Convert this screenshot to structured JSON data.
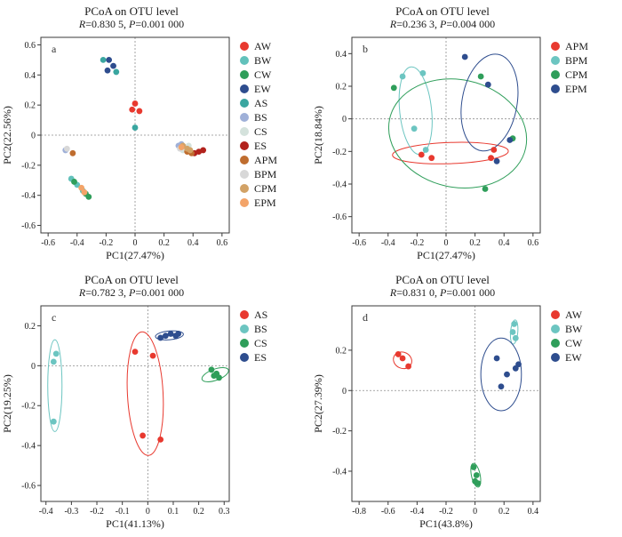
{
  "figure": {
    "background": "#ffffff"
  },
  "chart_data": [
    {
      "id": "a",
      "letter": "a",
      "type": "scatter",
      "title": "PCoA on OTU level",
      "stats": {
        "r_label": "R",
        "r_rest": "=0.830 5, ",
        "p_label": "P",
        "p_rest": "=0.001 000"
      },
      "xlabel": "PC1(27.47%)",
      "ylabel": "PC2(22.56%)",
      "xlim": [
        -0.65,
        0.65
      ],
      "ylim": [
        -0.65,
        0.65
      ],
      "xticks": [
        -0.6,
        -0.4,
        -0.2,
        0,
        0.2,
        0.4,
        0.6
      ],
      "yticks": [
        -0.6,
        -0.4,
        -0.2,
        0,
        0.2,
        0.4,
        0.6
      ],
      "series": [
        {
          "name": "AW",
          "color": "#e8392f",
          "points": [
            [
              0.0,
              0.21
            ],
            [
              -0.02,
              0.17
            ],
            [
              0.03,
              0.16
            ]
          ]
        },
        {
          "name": "BW",
          "color": "#62c1bb",
          "points": [
            [
              -0.44,
              -0.29
            ],
            [
              -0.4,
              -0.33
            ],
            [
              -0.36,
              -0.37
            ]
          ]
        },
        {
          "name": "CW",
          "color": "#2f9e5a",
          "points": [
            [
              -0.42,
              -0.31
            ],
            [
              -0.34,
              -0.39
            ],
            [
              -0.32,
              -0.41
            ]
          ]
        },
        {
          "name": "EW",
          "color": "#2e4d8e",
          "points": [
            [
              -0.18,
              0.5
            ],
            [
              -0.15,
              0.46
            ],
            [
              -0.19,
              0.43
            ]
          ]
        },
        {
          "name": "AS",
          "color": "#3aa6a0",
          "points": [
            [
              -0.22,
              0.5
            ],
            [
              -0.13,
              0.42
            ],
            [
              0.0,
              0.05
            ]
          ]
        },
        {
          "name": "BS",
          "color": "#9fb0d8",
          "points": [
            [
              0.3,
              -0.07
            ],
            [
              0.32,
              -0.06
            ],
            [
              -0.48,
              -0.1
            ]
          ]
        },
        {
          "name": "CS",
          "color": "#d4e2dc",
          "points": [
            [
              0.35,
              -0.09
            ],
            [
              0.37,
              -0.07
            ],
            [
              0.33,
              -0.1
            ]
          ]
        },
        {
          "name": "ES",
          "color": "#b2221c",
          "points": [
            [
              0.47,
              -0.1
            ],
            [
              0.44,
              -0.11
            ],
            [
              0.41,
              -0.12
            ]
          ]
        },
        {
          "name": "APM",
          "color": "#bf6d2f",
          "points": [
            [
              0.39,
              -0.12
            ],
            [
              0.36,
              -0.11
            ],
            [
              -0.43,
              -0.12
            ]
          ]
        },
        {
          "name": "BPM",
          "color": "#d8d8d8",
          "points": [
            [
              -0.47,
              -0.09
            ],
            [
              0.34,
              -0.08
            ],
            [
              0.31,
              -0.09
            ]
          ]
        },
        {
          "name": "CPM",
          "color": "#d2a266",
          "points": [
            [
              0.33,
              -0.07
            ],
            [
              0.36,
              -0.09
            ],
            [
              0.38,
              -0.1
            ]
          ]
        },
        {
          "name": "EPM",
          "color": "#f3a469",
          "points": [
            [
              -0.37,
              -0.35
            ],
            [
              -0.35,
              -0.38
            ],
            [
              0.32,
              -0.08
            ]
          ]
        }
      ],
      "ellipses": []
    },
    {
      "id": "b",
      "letter": "b",
      "type": "scatter",
      "title": "PCoA on OTU level",
      "stats": {
        "r_label": "R",
        "r_rest": "=0.236 3, ",
        "p_label": "P",
        "p_rest": "=0.004 000"
      },
      "xlabel": "PC1(27.47%)",
      "ylabel": "PC2(18.84%)",
      "xlim": [
        -0.65,
        0.65
      ],
      "ylim": [
        -0.7,
        0.5
      ],
      "xticks": [
        -0.6,
        -0.4,
        -0.2,
        0,
        0.2,
        0.4,
        0.6
      ],
      "yticks": [
        -0.6,
        -0.4,
        -0.2,
        0,
        0.2,
        0.4
      ],
      "series": [
        {
          "name": "APM",
          "color": "#e8392f",
          "points": [
            [
              -0.17,
              -0.22
            ],
            [
              -0.1,
              -0.24
            ],
            [
              0.33,
              -0.19
            ],
            [
              0.31,
              -0.24
            ]
          ]
        },
        {
          "name": "BPM",
          "color": "#6cc5c1",
          "points": [
            [
              -0.3,
              0.26
            ],
            [
              -0.16,
              0.28
            ],
            [
              -0.22,
              -0.06
            ],
            [
              -0.14,
              -0.19
            ]
          ]
        },
        {
          "name": "CPM",
          "color": "#2f9e5a",
          "points": [
            [
              -0.36,
              0.19
            ],
            [
              0.24,
              0.26
            ],
            [
              0.46,
              -0.12
            ],
            [
              0.27,
              -0.43
            ]
          ]
        },
        {
          "name": "EPM",
          "color": "#2e4d8e",
          "points": [
            [
              0.13,
              0.38
            ],
            [
              0.29,
              0.21
            ],
            [
              0.44,
              -0.13
            ],
            [
              0.35,
              -0.26
            ]
          ]
        }
      ],
      "ellipses": [
        {
          "color": "#e8392f",
          "cx": 0.03,
          "cy": -0.21,
          "rx": 0.4,
          "ry": 0.065,
          "rot": -2
        },
        {
          "color": "#6cc5c1",
          "cx": -0.21,
          "cy": 0.05,
          "rx": 0.11,
          "ry": 0.27,
          "rot": -6
        },
        {
          "color": "#2f9e5a",
          "cx": 0.08,
          "cy": -0.09,
          "rx": 0.48,
          "ry": 0.33,
          "rot": 12
        },
        {
          "color": "#2e4d8e",
          "cx": 0.3,
          "cy": 0.1,
          "rx": 0.19,
          "ry": 0.3,
          "rot": 10
        }
      ]
    },
    {
      "id": "c",
      "letter": "c",
      "type": "scatter",
      "title": "PCoA on OTU level",
      "stats": {
        "r_label": "R",
        "r_rest": "=0.782 3, ",
        "p_label": "P",
        "p_rest": "=0.001 000"
      },
      "xlabel": "PC1(41.13%)",
      "ylabel": "PC2(19.25%)",
      "xlim": [
        -0.42,
        0.32
      ],
      "ylim": [
        -0.68,
        0.3
      ],
      "xticks": [
        -0.4,
        -0.3,
        -0.2,
        -0.1,
        0,
        0.1,
        0.2,
        0.3
      ],
      "yticks": [
        -0.6,
        -0.4,
        -0.2,
        0,
        0.2
      ],
      "series": [
        {
          "name": "AS",
          "color": "#e8392f",
          "points": [
            [
              -0.05,
              0.07
            ],
            [
              0.02,
              0.05
            ],
            [
              -0.02,
              -0.35
            ],
            [
              0.05,
              -0.37
            ]
          ]
        },
        {
          "name": "BS",
          "color": "#6cc5c1",
          "points": [
            [
              -0.36,
              0.06
            ],
            [
              -0.37,
              0.02
            ],
            [
              -0.37,
              -0.28
            ]
          ]
        },
        {
          "name": "CS",
          "color": "#2f9e5a",
          "points": [
            [
              0.25,
              -0.02
            ],
            [
              0.27,
              -0.04
            ],
            [
              0.28,
              -0.06
            ],
            [
              0.26,
              -0.05
            ]
          ]
        },
        {
          "name": "ES",
          "color": "#2e4d8e",
          "points": [
            [
              0.05,
              0.14
            ],
            [
              0.07,
              0.15
            ],
            [
              0.09,
              0.16
            ],
            [
              0.11,
              0.15
            ],
            [
              0.12,
              0.16
            ]
          ]
        }
      ],
      "ellipses": [
        {
          "color": "#e8392f",
          "cx": -0.01,
          "cy": -0.14,
          "rx": 0.07,
          "ry": 0.31,
          "rot": -3
        },
        {
          "color": "#6cc5c1",
          "cx": -0.365,
          "cy": -0.1,
          "rx": 0.028,
          "ry": 0.23,
          "rot": 0
        },
        {
          "color": "#2f9e5a",
          "cx": 0.265,
          "cy": -0.045,
          "rx": 0.055,
          "ry": 0.028,
          "rot": -20
        },
        {
          "color": "#2e4d8e",
          "cx": 0.085,
          "cy": 0.152,
          "rx": 0.055,
          "ry": 0.022,
          "rot": -5
        }
      ]
    },
    {
      "id": "d",
      "letter": "d",
      "type": "scatter",
      "title": "PCoA on OTU level",
      "stats": {
        "r_label": "R",
        "r_rest": "=0.831 0, ",
        "p_label": "P",
        "p_rest": "=0.001 000"
      },
      "xlabel": "PC1(43.8%)",
      "ylabel": "PC2(27.39%)",
      "xlim": [
        -0.85,
        0.45
      ],
      "ylim": [
        -0.55,
        0.42
      ],
      "xticks": [
        -0.8,
        -0.6,
        -0.4,
        -0.2,
        0,
        0.2,
        0.4
      ],
      "yticks": [
        -0.4,
        -0.2,
        0,
        0.2
      ],
      "series": [
        {
          "name": "AW",
          "color": "#e8392f",
          "points": [
            [
              -0.53,
              0.18
            ],
            [
              -0.5,
              0.16
            ],
            [
              -0.46,
              0.12
            ]
          ]
        },
        {
          "name": "BW",
          "color": "#6cc5c1",
          "points": [
            [
              0.27,
              0.33
            ],
            [
              0.26,
              0.29
            ],
            [
              0.28,
              0.26
            ]
          ]
        },
        {
          "name": "CW",
          "color": "#2f9e5a",
          "points": [
            [
              -0.01,
              -0.38
            ],
            [
              0.01,
              -0.42
            ],
            [
              0.0,
              -0.45
            ],
            [
              0.02,
              -0.46
            ]
          ]
        },
        {
          "name": "EW",
          "color": "#2e4d8e",
          "points": [
            [
              0.15,
              0.16
            ],
            [
              0.28,
              0.11
            ],
            [
              0.3,
              0.13
            ],
            [
              0.22,
              0.08
            ],
            [
              0.18,
              0.02
            ]
          ]
        }
      ],
      "ellipses": [
        {
          "color": "#e8392f",
          "cx": -0.5,
          "cy": 0.15,
          "rx": 0.065,
          "ry": 0.04,
          "rot": 25
        },
        {
          "color": "#6cc5c1",
          "cx": 0.27,
          "cy": 0.29,
          "rx": 0.025,
          "ry": 0.06,
          "rot": 5
        },
        {
          "color": "#2f9e5a",
          "cx": 0.005,
          "cy": -0.42,
          "rx": 0.03,
          "ry": 0.06,
          "rot": -12
        },
        {
          "color": "#2e4d8e",
          "cx": 0.18,
          "cy": 0.08,
          "rx": 0.14,
          "ry": 0.18,
          "rot": 0
        }
      ]
    }
  ]
}
